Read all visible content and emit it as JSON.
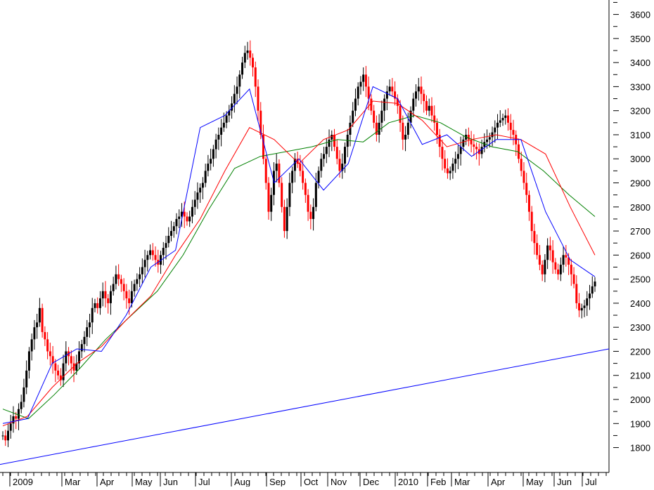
{
  "chart_data": {
    "type": "candlestick",
    "colors": {
      "up": "#000000",
      "down": "#ff0000",
      "ma_short": "#0000ff",
      "ma_mid": "#ff0000",
      "ma_long": "#008000",
      "trendline": "#0000ff",
      "axis": "#000000",
      "background": "#ffffff"
    },
    "y_axis": {
      "side": "right",
      "ylim": [
        1720,
        3660
      ],
      "ticks": [
        1800,
        1900,
        2000,
        2100,
        2200,
        2300,
        2400,
        2500,
        2600,
        2700,
        2800,
        2900,
        3000,
        3100,
        3200,
        3300,
        3400,
        3500,
        3600
      ]
    },
    "x_axis": {
      "labels": [
        "2009",
        "Mar",
        "Apr",
        "May",
        "Jun",
        "Jul",
        "Aug",
        "Sep",
        "Oct",
        "Nov",
        "Dec",
        "2010",
        "Feb",
        "Mar",
        "Apr",
        "May",
        "Jun",
        "Jul"
      ]
    },
    "close_series": [
      1850,
      1830,
      1870,
      1900,
      1930,
      1920,
      1960,
      1990,
      2050,
      2120,
      2200,
      2250,
      2300,
      2320,
      2380,
      2280,
      2250,
      2200,
      2180,
      2150,
      2120,
      2100,
      2080,
      2150,
      2200,
      2180,
      2150,
      2120,
      2150,
      2200,
      2230,
      2260,
      2300,
      2320,
      2380,
      2400,
      2380,
      2420,
      2450,
      2420,
      2400,
      2450,
      2480,
      2520,
      2500,
      2480,
      2450,
      2420,
      2400,
      2450,
      2480,
      2500,
      2520,
      2550,
      2580,
      2600,
      2620,
      2600,
      2580,
      2560,
      2600,
      2630,
      2650,
      2680,
      2700,
      2720,
      2750,
      2760,
      2780,
      2760,
      2740,
      2760,
      2800,
      2830,
      2860,
      2880,
      2900,
      2950,
      2980,
      3000,
      3040,
      3080,
      3100,
      3130,
      3150,
      3180,
      3200,
      3230,
      3270,
      3300,
      3350,
      3400,
      3440,
      3450,
      3420,
      3380,
      3300,
      3200,
      3100,
      3000,
      2900,
      2780,
      2850,
      2950,
      2980,
      2900,
      2800,
      2700,
      2800,
      2900,
      2950,
      3000,
      2980,
      2950,
      2900,
      2850,
      2780,
      2750,
      2800,
      2900,
      2950,
      3000,
      3020,
      3050,
      3080,
      3100,
      3050,
      3000,
      2950,
      2980,
      3050,
      3100,
      3150,
      3200,
      3250,
      3300,
      3320,
      3350,
      3300,
      3250,
      3200,
      3150,
      3100,
      3150,
      3200,
      3250,
      3280,
      3300,
      3280,
      3250,
      3220,
      3150,
      3080,
      3100,
      3150,
      3200,
      3250,
      3280,
      3300,
      3270,
      3240,
      3200,
      3220,
      3180,
      3150,
      3100,
      3050,
      3000,
      2960,
      2940,
      2950,
      2980,
      3000,
      3020,
      3050,
      3080,
      3100,
      3080,
      3060,
      3050,
      3040,
      3020,
      3050,
      3070,
      3080,
      3090,
      3110,
      3130,
      3150,
      3160,
      3170,
      3180,
      3150,
      3120,
      3100,
      3060,
      3000,
      2950,
      2900,
      2850,
      2780,
      2700,
      2650,
      2600,
      2560,
      2520,
      2580,
      2640,
      2620,
      2570,
      2540,
      2520,
      2560,
      2600,
      2590,
      2560,
      2520,
      2480,
      2400,
      2370,
      2380,
      2390,
      2420,
      2440,
      2470,
      2490
    ],
    "ma_short": {
      "label": "",
      "values": [
        1900,
        1920,
        2150,
        2210,
        2200,
        2350,
        2550,
        2620,
        3130,
        3180,
        3290,
        2900,
        3000,
        2870,
        2980,
        3300,
        3250,
        3060,
        3100,
        3010,
        3080,
        3080,
        2780,
        2580,
        2510
      ]
    },
    "ma_mid": {
      "label": "",
      "values": [
        1890,
        1930,
        2050,
        2150,
        2220,
        2330,
        2430,
        2600,
        2750,
        2950,
        3130,
        3080,
        2980,
        3080,
        3120,
        3240,
        3230,
        3160,
        3050,
        3080,
        3100,
        3080,
        3020,
        2800,
        2600
      ]
    },
    "ma_long": {
      "label": "",
      "values": [
        1960,
        1920,
        2020,
        2130,
        2250,
        2350,
        2450,
        2600,
        2790,
        2960,
        3010,
        3030,
        3050,
        3080,
        3070,
        3150,
        3180,
        3150,
        3090,
        3050,
        3030,
        2950,
        2850,
        2760
      ]
    },
    "trendline": {
      "from": [
        "2009",
        1730
      ],
      "to": [
        "Jul",
        2210
      ]
    }
  }
}
